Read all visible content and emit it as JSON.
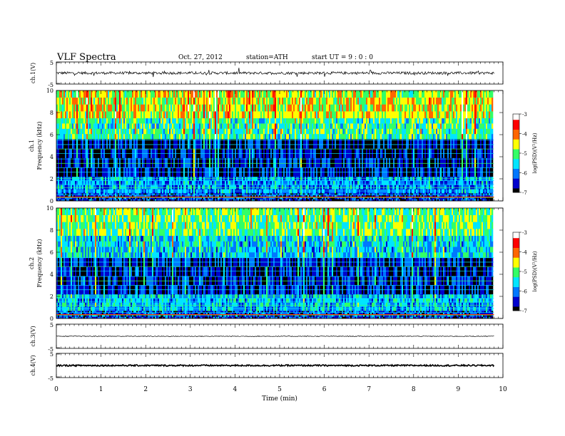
{
  "header": {
    "title": "VLF  Spectra",
    "date": "Oct. 27, 2012",
    "station": "station=ATH",
    "start": "start  UT  =   9  : 0  : 0"
  },
  "chart_data": [
    {
      "type": "line",
      "panel": "ch1-waveform",
      "ylabel": "ch.1(V)",
      "ylim": [
        -5,
        5
      ],
      "yticks": [
        "5",
        "-5"
      ],
      "xlim": [
        0,
        10
      ],
      "trace_end_min": 9.8,
      "baseline_v": 0.0,
      "noise_amplitude_v": 0.6,
      "spikes_amplitude_v": 2.0
    },
    {
      "type": "heatmap",
      "panel": "ch1-spectrogram",
      "ylabel": "ch.1\nFrequency  (kHz)",
      "ylim": [
        0,
        10
      ],
      "yticks": [
        "0",
        "2",
        "4",
        "6",
        "8",
        "10"
      ],
      "xlim": [
        0,
        10
      ],
      "trace_end_min": 9.8,
      "colorbar": {
        "label": "log(PSD)(V²/Hz)",
        "range": [
          -7,
          -3
        ],
        "ticks": [
          "-3",
          "-4",
          "-5",
          "-6",
          "-7"
        ],
        "colors": [
          "#000000",
          "#0000cc",
          "#0077ff",
          "#00e5ff",
          "#33ff66",
          "#ffff00",
          "#ff6600",
          "#ff0000",
          "#ffffff"
        ]
      },
      "bands": [
        {
          "f_from": 0,
          "f_to": 0.7,
          "level": -6.4
        },
        {
          "f_from": 0.7,
          "f_to": 2.2,
          "level": -5.9
        },
        {
          "f_from": 2.2,
          "f_to": 5.6,
          "level": -6.6
        },
        {
          "f_from": 5.6,
          "f_to": 7.5,
          "level": -5.2
        },
        {
          "f_from": 7.5,
          "f_to": 10,
          "level": -4.6
        }
      ]
    },
    {
      "type": "heatmap",
      "panel": "ch2-spectrogram",
      "ylabel": "ch.2\nFrequency  (kHz)",
      "ylim": [
        0,
        10
      ],
      "yticks": [
        "0",
        "2",
        "4",
        "6",
        "8",
        "10"
      ],
      "xlim": [
        0,
        10
      ],
      "trace_end_min": 9.8,
      "colorbar": {
        "label": "log(PSD)(V²/Hz)",
        "range": [
          -7,
          -3
        ],
        "ticks": [
          "-3",
          "-4",
          "-5",
          "-6",
          "-7"
        ],
        "colors": [
          "#000000",
          "#0000cc",
          "#0077ff",
          "#00e5ff",
          "#33ff66",
          "#ffff00",
          "#ff6600",
          "#ff0000",
          "#ffffff"
        ]
      },
      "bands": [
        {
          "f_from": 0,
          "f_to": 0.7,
          "level": -6.3
        },
        {
          "f_from": 0.7,
          "f_to": 2.2,
          "level": -5.7
        },
        {
          "f_from": 2.2,
          "f_to": 5.5,
          "level": -6.5
        },
        {
          "f_from": 5.5,
          "f_to": 7.5,
          "level": -5.6
        },
        {
          "f_from": 7.5,
          "f_to": 10,
          "level": -5.0
        }
      ]
    },
    {
      "type": "line",
      "panel": "ch3-waveform",
      "ylabel": "ch.3(V)",
      "ylim": [
        -5,
        5
      ],
      "yticks": [
        "5",
        "-5"
      ],
      "xlim": [
        0,
        10
      ],
      "trace_end_min": 9.8,
      "baseline_v": 0.0,
      "noise_amplitude_v": 0.15
    },
    {
      "type": "line",
      "panel": "ch4-waveform",
      "ylabel": "ch.4(V)",
      "ylim": [
        -5,
        5
      ],
      "yticks": [
        "5",
        "-5"
      ],
      "xlim": [
        0,
        10
      ],
      "xlabel": "Time  (min)",
      "xticks": [
        "0",
        "1",
        "2",
        "3",
        "4",
        "5",
        "6",
        "7",
        "8",
        "9",
        "10"
      ],
      "trace_end_min": 9.8,
      "baseline_v": 0.0,
      "noise_amplitude_v": 0.3
    }
  ]
}
